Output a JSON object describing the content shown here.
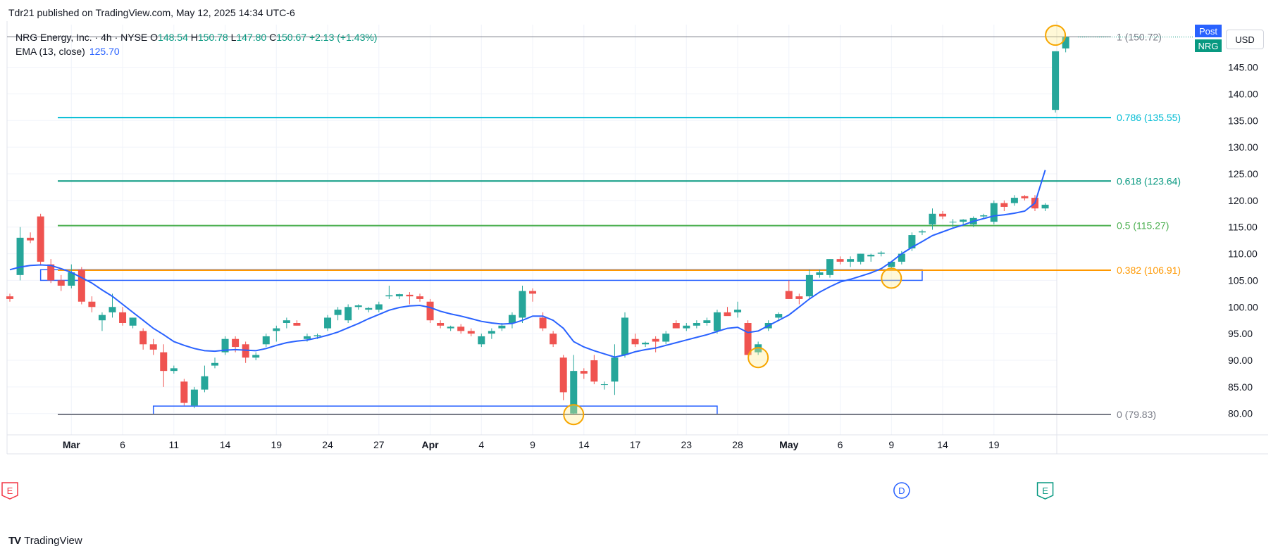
{
  "header": {
    "publisher": "Tdr21 published on TradingView.com, May 12, 2025 14:34 UTC-6"
  },
  "legend": {
    "symbol": "NRG Energy, Inc. · 4h · NYSE",
    "o_label": "O",
    "o": "148.54",
    "h_label": "H",
    "h": "150.78",
    "l_label": "L",
    "l": "147.80",
    "c_label": "C",
    "c": "150.67",
    "change": "+2.13 (+1.43%)",
    "ema_label": "EMA (13, close)",
    "ema_value": "125.70"
  },
  "badges": {
    "post": "Post",
    "symbol": "NRG",
    "currency": "USD"
  },
  "footer": {
    "brand": "TradingView"
  },
  "colors": {
    "up": "#26a69a",
    "down": "#ef5350",
    "ema": "#2962ff",
    "zone": "#2962ff",
    "circle": "#f7a600"
  },
  "chart_data": {
    "type": "candlestick",
    "title": "NRG Energy, Inc. · 4h · NYSE",
    "ylim": [
      76,
      153
    ],
    "y_ticks": [
      "80.00",
      "85.00",
      "90.00",
      "95.00",
      "100.00",
      "105.00",
      "110.00",
      "115.00",
      "120.00",
      "125.00",
      "130.00",
      "135.00",
      "140.00",
      "145.00"
    ],
    "x_labels": [
      {
        "label": "Mar",
        "i": 6
      },
      {
        "label": "6",
        "i": 11
      },
      {
        "label": "11",
        "i": 16
      },
      {
        "label": "14",
        "i": 21
      },
      {
        "label": "19",
        "i": 26
      },
      {
        "label": "24",
        "i": 31
      },
      {
        "label": "27",
        "i": 36
      },
      {
        "label": "Apr",
        "i": 41
      },
      {
        "label": "4",
        "i": 46
      },
      {
        "label": "9",
        "i": 51
      },
      {
        "label": "14",
        "i": 56
      },
      {
        "label": "17",
        "i": 61
      },
      {
        "label": "23",
        "i": 66
      },
      {
        "label": "28",
        "i": 71
      },
      {
        "label": "May",
        "i": 76
      },
      {
        "label": "6",
        "i": 81
      },
      {
        "label": "9",
        "i": 86
      },
      {
        "label": "14",
        "i": 91
      },
      {
        "label": "19",
        "i": 96
      }
    ],
    "candles": [
      {
        "o": 102,
        "h": 102.5,
        "l": 101,
        "c": 101.5
      },
      {
        "o": 106,
        "h": 115,
        "l": 105,
        "c": 113
      },
      {
        "o": 113,
        "h": 114,
        "l": 112,
        "c": 112.5
      },
      {
        "o": 117,
        "h": 117.5,
        "l": 108,
        "c": 108.5
      },
      {
        "o": 108,
        "h": 109,
        "l": 104.5,
        "c": 105
      },
      {
        "o": 105,
        "h": 106,
        "l": 103,
        "c": 104
      },
      {
        "o": 104,
        "h": 108,
        "l": 103.5,
        "c": 106.5
      },
      {
        "o": 107,
        "h": 107.5,
        "l": 100.5,
        "c": 101
      },
      {
        "o": 101,
        "h": 102,
        "l": 99,
        "c": 100
      },
      {
        "o": 97.5,
        "h": 99,
        "l": 95.5,
        "c": 98.5
      },
      {
        "o": 99,
        "h": 102.5,
        "l": 98,
        "c": 100
      },
      {
        "o": 99,
        "h": 100,
        "l": 96.5,
        "c": 97
      },
      {
        "o": 96.5,
        "h": 98,
        "l": 96,
        "c": 98
      },
      {
        "o": 95.5,
        "h": 96,
        "l": 92,
        "c": 93
      },
      {
        "o": 93,
        "h": 94,
        "l": 91,
        "c": 92
      },
      {
        "o": 91.5,
        "h": 93,
        "l": 85,
        "c": 88
      },
      {
        "o": 88,
        "h": 89,
        "l": 87.5,
        "c": 88.5
      },
      {
        "o": 86,
        "h": 86.5,
        "l": 81.5,
        "c": 82
      },
      {
        "o": 81.5,
        "h": 85,
        "l": 81,
        "c": 84.5
      },
      {
        "o": 84.5,
        "h": 89,
        "l": 84,
        "c": 87
      },
      {
        "o": 89,
        "h": 90.5,
        "l": 88.5,
        "c": 89.5
      },
      {
        "o": 91.5,
        "h": 94.5,
        "l": 91,
        "c": 94
      },
      {
        "o": 94,
        "h": 94.5,
        "l": 91.5,
        "c": 92.5
      },
      {
        "o": 93,
        "h": 93.5,
        "l": 89.5,
        "c": 90.5
      },
      {
        "o": 90.5,
        "h": 91.5,
        "l": 90,
        "c": 91
      },
      {
        "o": 93,
        "h": 95,
        "l": 92.5,
        "c": 94.5
      },
      {
        "o": 95.5,
        "h": 96.5,
        "l": 93.5,
        "c": 96
      },
      {
        "o": 97,
        "h": 98,
        "l": 96,
        "c": 97.5
      },
      {
        "o": 97,
        "h": 97.5,
        "l": 96.5,
        "c": 96.5
      },
      {
        "o": 94,
        "h": 95,
        "l": 93.5,
        "c": 94.5
      },
      {
        "o": 94.5,
        "h": 95,
        "l": 94,
        "c": 94.7
      },
      {
        "o": 96,
        "h": 98.5,
        "l": 95.5,
        "c": 98
      },
      {
        "o": 98.5,
        "h": 100,
        "l": 97.5,
        "c": 99.5
      },
      {
        "o": 97.5,
        "h": 100.5,
        "l": 97,
        "c": 100
      },
      {
        "o": 100,
        "h": 100.5,
        "l": 99.5,
        "c": 100.3
      },
      {
        "o": 99.5,
        "h": 100,
        "l": 99,
        "c": 99.8
      },
      {
        "o": 99.5,
        "h": 101,
        "l": 99,
        "c": 100.5
      },
      {
        "o": 102,
        "h": 104,
        "l": 101.5,
        "c": 102.2
      },
      {
        "o": 102,
        "h": 102.5,
        "l": 101.5,
        "c": 102.4
      },
      {
        "o": 102.3,
        "h": 102.8,
        "l": 100.5,
        "c": 102
      },
      {
        "o": 102,
        "h": 102.5,
        "l": 101,
        "c": 101.5
      },
      {
        "o": 101,
        "h": 101.5,
        "l": 97,
        "c": 97.5
      },
      {
        "o": 97,
        "h": 97.5,
        "l": 96,
        "c": 96.5
      },
      {
        "o": 96,
        "h": 96.5,
        "l": 95.5,
        "c": 96.3
      },
      {
        "o": 96.3,
        "h": 96.8,
        "l": 95,
        "c": 95.5
      },
      {
        "o": 95.5,
        "h": 96,
        "l": 94.5,
        "c": 95
      },
      {
        "o": 93,
        "h": 95,
        "l": 92.5,
        "c": 94.5
      },
      {
        "o": 95,
        "h": 96,
        "l": 94,
        "c": 95.5
      },
      {
        "o": 96,
        "h": 97,
        "l": 95.5,
        "c": 96.5
      },
      {
        "o": 97,
        "h": 99,
        "l": 96,
        "c": 98.5
      },
      {
        "o": 98,
        "h": 104,
        "l": 97,
        "c": 103
      },
      {
        "o": 103,
        "h": 103.5,
        "l": 101,
        "c": 102.5
      },
      {
        "o": 98,
        "h": 99,
        "l": 95.5,
        "c": 96
      },
      {
        "o": 95,
        "h": 95.5,
        "l": 92.5,
        "c": 93
      },
      {
        "o": 90.5,
        "h": 91,
        "l": 82.5,
        "c": 84
      },
      {
        "o": 80,
        "h": 91,
        "l": 79.83,
        "c": 88
      },
      {
        "o": 88,
        "h": 88.5,
        "l": 86.5,
        "c": 87.5
      },
      {
        "o": 90,
        "h": 91,
        "l": 85.5,
        "c": 86
      },
      {
        "o": 85.5,
        "h": 86,
        "l": 84.5,
        "c": 85.5
      },
      {
        "o": 86,
        "h": 93,
        "l": 83.5,
        "c": 90.5
      },
      {
        "o": 91,
        "h": 99,
        "l": 90.5,
        "c": 98
      },
      {
        "o": 94,
        "h": 95,
        "l": 92.5,
        "c": 93
      },
      {
        "o": 93,
        "h": 93.5,
        "l": 92.5,
        "c": 93.3
      },
      {
        "o": 94,
        "h": 94.5,
        "l": 91.5,
        "c": 93.5
      },
      {
        "o": 93.5,
        "h": 95.5,
        "l": 93,
        "c": 95
      },
      {
        "o": 97,
        "h": 97.5,
        "l": 96.5,
        "c": 96
      },
      {
        "o": 96,
        "h": 97,
        "l": 95.5,
        "c": 96.5
      },
      {
        "o": 96.5,
        "h": 97.5,
        "l": 96,
        "c": 97
      },
      {
        "o": 97,
        "h": 98,
        "l": 96.5,
        "c": 97.5
      },
      {
        "o": 95.5,
        "h": 99.5,
        "l": 95,
        "c": 99
      },
      {
        "o": 99,
        "h": 100,
        "l": 98.5,
        "c": 98.3
      },
      {
        "o": 99,
        "h": 101,
        "l": 98,
        "c": 99.5
      },
      {
        "o": 97,
        "h": 97.5,
        "l": 91,
        "c": 91
      },
      {
        "o": 91.5,
        "h": 93.5,
        "l": 91,
        "c": 93
      },
      {
        "o": 96,
        "h": 97.5,
        "l": 95.5,
        "c": 97
      },
      {
        "o": 98,
        "h": 99,
        "l": 97.5,
        "c": 98.7
      },
      {
        "o": 103,
        "h": 105,
        "l": 101.5,
        "c": 101.5
      },
      {
        "o": 102,
        "h": 102.5,
        "l": 100.5,
        "c": 101.5
      },
      {
        "o": 102,
        "h": 107,
        "l": 101.5,
        "c": 106
      },
      {
        "o": 106,
        "h": 107,
        "l": 105.5,
        "c": 106.5
      },
      {
        "o": 106,
        "h": 109,
        "l": 105.5,
        "c": 109
      },
      {
        "o": 109,
        "h": 109.5,
        "l": 108,
        "c": 108.5
      },
      {
        "o": 108.5,
        "h": 109.5,
        "l": 107.5,
        "c": 109
      },
      {
        "o": 108.5,
        "h": 110,
        "l": 108,
        "c": 110
      },
      {
        "o": 109.5,
        "h": 110,
        "l": 108.5,
        "c": 109.8
      },
      {
        "o": 110,
        "h": 110.5,
        "l": 109.5,
        "c": 110.2
      },
      {
        "o": 107.5,
        "h": 108.5,
        "l": 107,
        "c": 108.5
      },
      {
        "o": 108.5,
        "h": 110.5,
        "l": 108,
        "c": 110
      },
      {
        "o": 111,
        "h": 114,
        "l": 110.5,
        "c": 113.5
      },
      {
        "o": 114,
        "h": 114.5,
        "l": 113.5,
        "c": 114.2
      },
      {
        "o": 115.5,
        "h": 118.5,
        "l": 114.5,
        "c": 117.5
      },
      {
        "o": 117.5,
        "h": 118,
        "l": 116.5,
        "c": 117
      },
      {
        "o": 116,
        "h": 116.5,
        "l": 115,
        "c": 116
      },
      {
        "o": 116,
        "h": 116.5,
        "l": 115.5,
        "c": 116.4
      },
      {
        "o": 115.5,
        "h": 117,
        "l": 115,
        "c": 116.7
      },
      {
        "o": 117,
        "h": 117.5,
        "l": 116.5,
        "c": 117.2
      },
      {
        "o": 116,
        "h": 120,
        "l": 115.5,
        "c": 119.5
      },
      {
        "o": 119.5,
        "h": 120,
        "l": 118,
        "c": 118.8
      },
      {
        "o": 119.5,
        "h": 121,
        "l": 119,
        "c": 120.5
      },
      {
        "o": 120.8,
        "h": 121,
        "l": 120,
        "c": 120.4
      },
      {
        "o": 120.5,
        "h": 121,
        "l": 118,
        "c": 118.5
      },
      {
        "o": 118.5,
        "h": 119.5,
        "l": 118,
        "c": 119.2
      },
      {
        "o": 137,
        "h": 148,
        "l": 136.5,
        "c": 148
      },
      {
        "o": 148.54,
        "h": 150.78,
        "l": 147.8,
        "c": 150.67
      }
    ],
    "ema": [
      107,
      107.5,
      107.8,
      107.9,
      107.8,
      107.2,
      106.5,
      105.5,
      104.5,
      103.2,
      102,
      100.5,
      99,
      97.5,
      96,
      94.8,
      93.5,
      92.8,
      92.2,
      91.8,
      91.7,
      91.9,
      92,
      91.9,
      91.8,
      92.2,
      92.8,
      93.3,
      93.6,
      93.8,
      94.2,
      94.7,
      95.3,
      96.1,
      96.9,
      97.8,
      98.6,
      99.4,
      99.9,
      100.2,
      100.3,
      99.9,
      99.2,
      98.7,
      98.3,
      97.8,
      97.3,
      97,
      96.8,
      96.9,
      97.5,
      98.3,
      98.3,
      97.5,
      96,
      93.5,
      92.5,
      91.8,
      91.2,
      90.6,
      91,
      91.6,
      92,
      92.3,
      92.8,
      93.3,
      93.8,
      94.3,
      94.8,
      95.4,
      96,
      96.2,
      95.2,
      95.5,
      96.5,
      97.5,
      98.5,
      100,
      101.5,
      102.8,
      103.8,
      104.7,
      105.2,
      105.8,
      106.4,
      107.2,
      108.5,
      110,
      111.2,
      112.3,
      113.4,
      114.1,
      114.8,
      115.4,
      116.1,
      116.6,
      117.1,
      117.3,
      117.6,
      118,
      119.5,
      125.7
    ],
    "fib_levels": [
      {
        "ratio": "1",
        "value": 150.72,
        "label": "1 (150.72)",
        "color": "#787b86"
      },
      {
        "ratio": "0.786",
        "value": 135.55,
        "label": "0.786 (135.55)",
        "color": "#00bcd4"
      },
      {
        "ratio": "0.618",
        "value": 123.64,
        "label": "0.618 (123.64)",
        "color": "#089981"
      },
      {
        "ratio": "0.5",
        "value": 115.27,
        "label": "0.5 (115.27)",
        "color": "#4caf50"
      },
      {
        "ratio": "0.382",
        "value": 106.91,
        "label": "0.382 (106.91)",
        "color": "#ff9800"
      },
      {
        "ratio": "0",
        "value": 79.83,
        "label": "0 (79.83)",
        "color": "#787b86"
      }
    ],
    "zones": [
      {
        "top": 107,
        "bottom": 105,
        "i_start": 3,
        "i_end": 89
      },
      {
        "top": 81.4,
        "bottom": 79.83,
        "i_start": 14,
        "i_end": 69
      }
    ],
    "circles": [
      {
        "i": 55,
        "price": 79.8
      },
      {
        "i": 73,
        "price": 90.5
      },
      {
        "i": 86,
        "price": 105.4
      },
      {
        "i": 102,
        "price": 151
      }
    ],
    "markers": [
      {
        "label": "E",
        "i": 0,
        "kind": "earnings-down"
      },
      {
        "label": "D",
        "i": 87,
        "kind": "dividend"
      },
      {
        "label": "E",
        "i": 101,
        "kind": "earnings-up"
      }
    ]
  }
}
